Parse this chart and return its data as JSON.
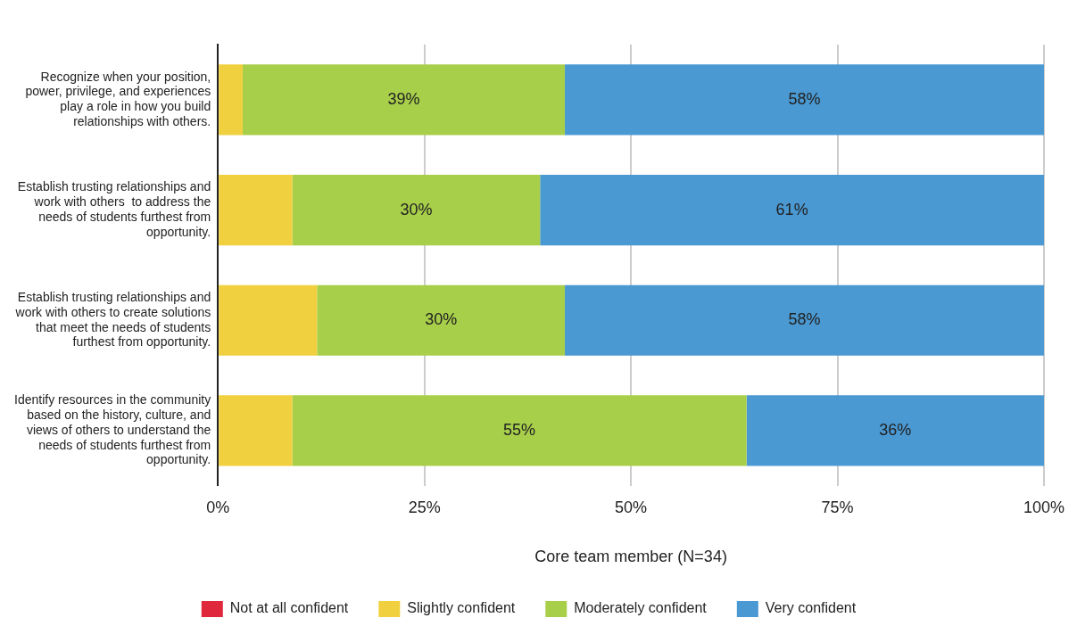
{
  "chart_data": {
    "type": "bar",
    "orientation": "horizontal",
    "stacked": true,
    "categories": [
      "Recognize when your position, power, privilege, and experiences play a role in how you build relationships with others.",
      "Establish trusting relationships and work with others  to address the needs of students furthest from opportunity.",
      "Establish trusting relationships and work with others to create solutions that meet the needs of students furthest from opportunity.",
      "Identify resources in the community based on the history, culture, and views of others to understand the needs of students furthest from opportunity."
    ],
    "series": [
      {
        "name": "Not at all confident",
        "color": "#e0283c",
        "values": [
          0,
          0,
          0,
          0
        ]
      },
      {
        "name": "Slightly confident",
        "color": "#f0d03e",
        "values": [
          3,
          9,
          12,
          9
        ]
      },
      {
        "name": "Moderately confident",
        "color": "#a8cf4a",
        "values": [
          39,
          30,
          30,
          55
        ],
        "value_labels": [
          "39%",
          "30%",
          "30%",
          "55%"
        ]
      },
      {
        "name": "Very confident",
        "color": "#4a99d2",
        "values": [
          58,
          61,
          58,
          36
        ],
        "value_labels": [
          "58%",
          "61%",
          "58%",
          "36%"
        ]
      }
    ],
    "xlim": [
      0,
      100
    ],
    "xticks": [
      {
        "value": 0,
        "label": "0%"
      },
      {
        "value": 25,
        "label": "25%"
      },
      {
        "value": 50,
        "label": "50%"
      },
      {
        "value": 75,
        "label": "75%"
      },
      {
        "value": 100,
        "label": "100%"
      }
    ],
    "xlabel": "Core team member (N=34)",
    "grid": "x",
    "legend": "bottom"
  }
}
